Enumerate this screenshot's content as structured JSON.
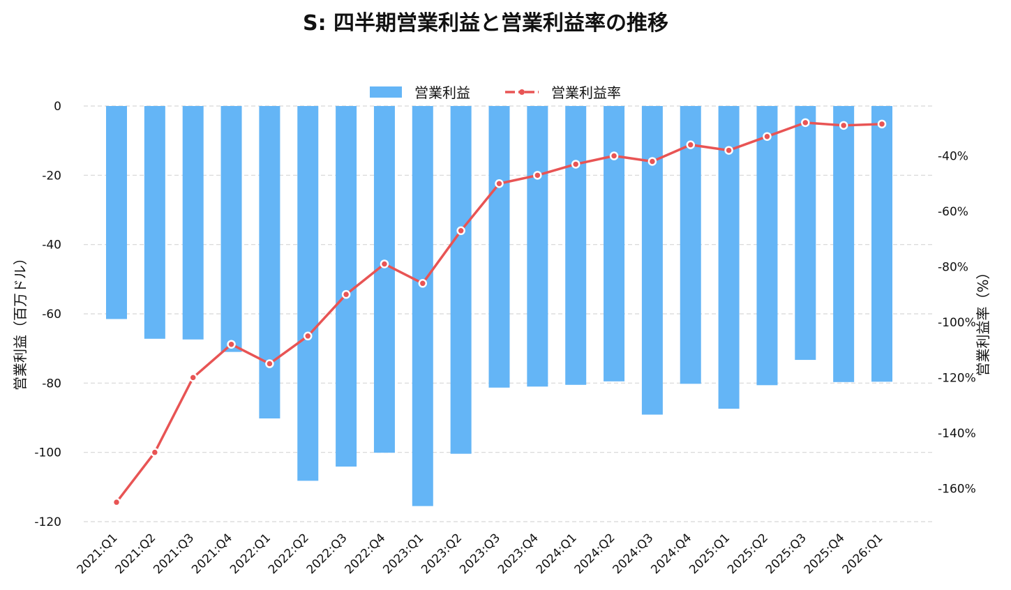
{
  "chart_data": {
    "type": "bar+line",
    "title": "S: 四半期営業利益と営業利益率の推移",
    "categories": [
      "2021:Q1",
      "2021:Q2",
      "2021:Q3",
      "2021:Q4",
      "2022:Q1",
      "2022:Q2",
      "2022:Q3",
      "2022:Q4",
      "2023:Q1",
      "2023:Q2",
      "2023:Q3",
      "2023:Q4",
      "2024:Q1",
      "2024:Q2",
      "2024:Q3",
      "2024:Q4",
      "2025:Q1",
      "2025:Q2",
      "2025:Q3",
      "2025:Q4",
      "2026:Q1"
    ],
    "series": [
      {
        "name": "営業利益",
        "type": "bar",
        "axis": "left",
        "color": "#64b5f6",
        "values": [
          -61.5,
          -67.2,
          -67.4,
          -71.0,
          -90.2,
          -108.2,
          -104.1,
          -100.1,
          -115.5,
          -100.4,
          -81.3,
          -81.0,
          -80.5,
          -79.5,
          -89.1,
          -80.2,
          -87.4,
          -80.6,
          -73.3,
          -79.7,
          -79.6
        ]
      },
      {
        "name": "営業利益率",
        "type": "line",
        "axis": "right",
        "color": "#e85454",
        "values": [
          -165,
          -147,
          -120,
          -108,
          -115,
          -105,
          -90,
          -79,
          -86,
          -67,
          -50,
          -47,
          -43,
          -40,
          -42,
          -36,
          -38,
          -33,
          -28,
          -29,
          -28.5
        ]
      }
    ],
    "y_left": {
      "label": "営業利益（百万ドル）",
      "range": [
        -120,
        0
      ],
      "ticks": [
        0,
        -20,
        -40,
        -60,
        -80,
        -100,
        -120
      ]
    },
    "y_right": {
      "label": "営業利益率（%）",
      "range": [
        -172,
        -22
      ],
      "ticks": [
        -40,
        -60,
        -80,
        -100,
        -120,
        -140,
        -160
      ],
      "tick_labels": [
        "-40%",
        "-60%",
        "-80%",
        "-100%",
        "-120%",
        "-140%",
        "-160%"
      ]
    },
    "grid": true,
    "legend": "top-center"
  }
}
